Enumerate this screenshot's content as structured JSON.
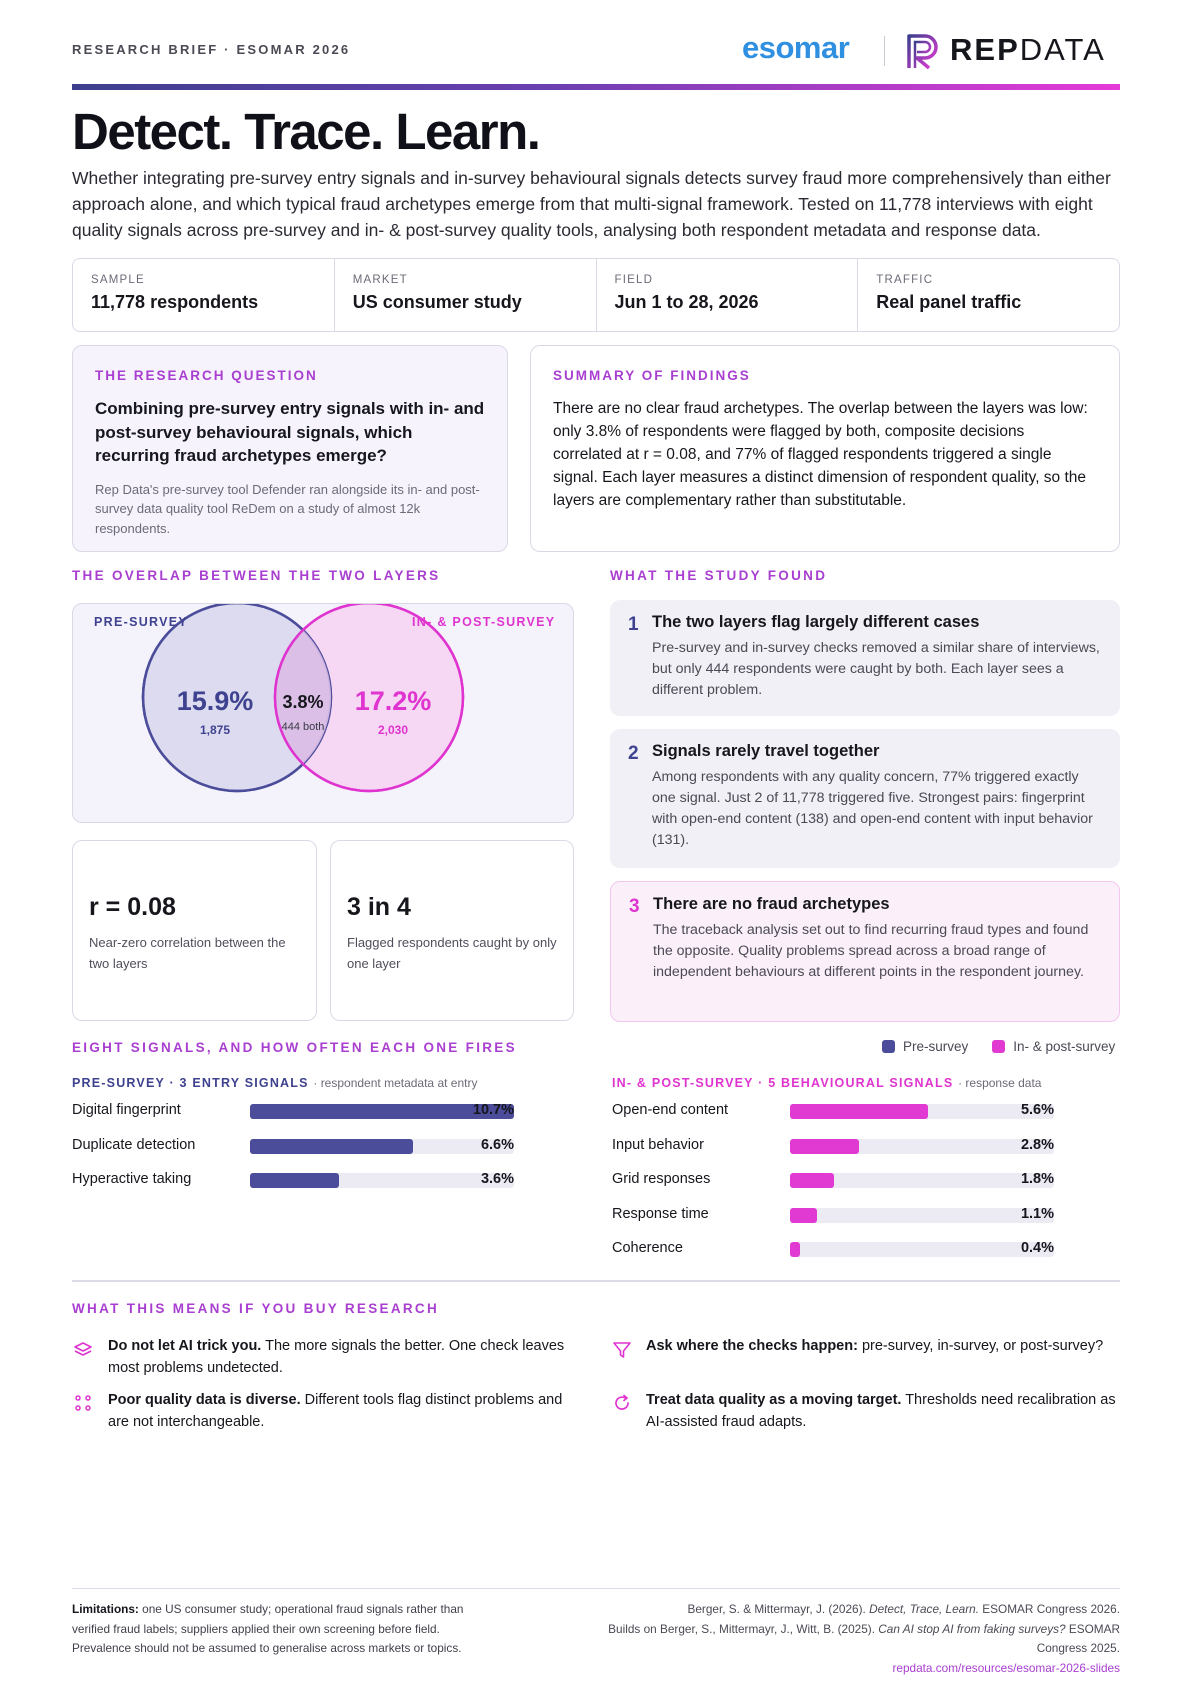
{
  "header": {
    "brief_label": "RESEARCH BRIEF · ESOMAR 2026",
    "esomar_logo": "esomar",
    "repdata_logo_bold": "REP",
    "repdata_logo_light": "DATA"
  },
  "title": "Detect. Trace. Learn.",
  "intro": "Whether integrating pre-survey entry signals and in-survey behavioural signals detects survey fraud more comprehensively than either approach alone, and which typical fraud archetypes emerge from that multi-signal framework. Tested on 11,778 interviews with eight quality signals across pre-survey and in- & post-survey quality tools, analysing both respondent metadata and response data.",
  "meta": [
    {
      "label": "SAMPLE",
      "value": "11,778 respondents"
    },
    {
      "label": "MARKET",
      "value": "US consumer study"
    },
    {
      "label": "FIELD",
      "value": "Jun 1 to 28, 2026"
    },
    {
      "label": "TRAFFIC",
      "value": "Real panel traffic"
    }
  ],
  "question": {
    "eyebrow": "THE RESEARCH QUESTION",
    "text": "Combining pre-survey entry signals with in- and post-survey behavioural signals, which recurring fraud archetypes emerge?",
    "note": "Rep Data's pre-survey tool Defender ran alongside its in- and post-survey data quality tool ReDem on a study of almost 12k respondents."
  },
  "summary": {
    "eyebrow": "SUMMARY OF FINDINGS",
    "text": "There are no clear fraud archetypes. The overlap between the layers was low: only 3.8% of respondents were flagged by both, composite decisions correlated at r = 0.08, and 77% of flagged respondents triggered a single signal. Each layer measures a distinct dimension of respondent quality, so the layers are complementary rather than substitutable."
  },
  "overlap": {
    "heading": "THE OVERLAP BETWEEN THE TWO LAYERS",
    "pre_label": "PRE-SURVEY",
    "post_label": "IN- & POST-SURVEY",
    "pre_pct": "15.9%",
    "pre_count": "1,875",
    "both_pct": "3.8%",
    "both_count": "444 both",
    "post_pct": "17.2%",
    "post_count": "2,030",
    "pre_color": "#3f428f",
    "post_color": "#df34cf"
  },
  "stats": [
    {
      "value": "r = 0.08",
      "caption": "Near-zero correlation between the two layers"
    },
    {
      "value": "3 in 4",
      "caption": "Flagged respondents caught by only one layer"
    }
  ],
  "findings": {
    "heading": "WHAT THE STUDY FOUND",
    "items": [
      {
        "num": "1",
        "title": "The two layers flag largely different cases",
        "body": "Pre-survey and in-survey checks removed a similar share of interviews, but only 444 respondents were caught by both. Each layer sees a different problem."
      },
      {
        "num": "2",
        "title": "Signals rarely travel together",
        "body": "Among respondents with any quality concern, 77% triggered exactly one signal. Just 2 of 11,778 triggered five. Strongest pairs: fingerprint with open-end content (138) and open-end content with input behavior (131)."
      },
      {
        "num": "3",
        "title": "There are no fraud archetypes",
        "body": "The traceback analysis set out to find recurring fraud types and found the opposite. Quality problems spread across a broad range of independent behaviours at different points in the respondent journey."
      }
    ]
  },
  "signals": {
    "heading": "EIGHT SIGNALS, AND HOW OFTEN EACH ONE FIRES",
    "legend_pre": "Pre-survey",
    "legend_post": "In- & post-survey",
    "pre_title": "PRE-SURVEY · 3 ENTRY SIGNALS",
    "pre_note": "· respondent metadata at entry",
    "post_title": "IN- & POST-SURVEY · 5 BEHAVIOURAL SIGNALS",
    "post_note": "· response data"
  },
  "chart_data": {
    "type": "bar",
    "orientation": "horizontal",
    "series": [
      {
        "name": "Pre-survey",
        "color": "#4b4c9a",
        "categories": [
          "Digital fingerprint",
          "Duplicate detection",
          "Hyperactive taking"
        ],
        "values": [
          10.7,
          6.6,
          3.6
        ],
        "labels": [
          "10.7%",
          "6.6%",
          "3.6%"
        ]
      },
      {
        "name": "In- & post-survey",
        "color": "#e03ad2",
        "categories": [
          "Open-end content",
          "Input behavior",
          "Grid responses",
          "Response time",
          "Coherence"
        ],
        "values": [
          5.6,
          2.8,
          1.8,
          1.1,
          0.4
        ],
        "labels": [
          "5.6%",
          "2.8%",
          "1.8%",
          "1.1%",
          "0.4%"
        ]
      }
    ],
    "xlim": [
      0,
      10.7
    ],
    "grid": false,
    "legend_position": "top-right"
  },
  "implications": {
    "heading": "WHAT THIS MEANS IF YOU BUY RESEARCH",
    "items": [
      {
        "icon": "layers-icon",
        "bold": "Do not let AI trick you.",
        "text": " The more signals the better. One check leaves most problems undetected."
      },
      {
        "icon": "funnel-icon",
        "bold": "Ask where the checks happen:",
        "text": " pre-survey, in-survey, or post-survey?"
      },
      {
        "icon": "dots-icon",
        "bold": "Poor quality data is diverse.",
        "text": " Different tools flag distinct problems and are not interchangeable."
      },
      {
        "icon": "refresh-icon",
        "bold": "Treat data quality as a moving target.",
        "text": " Thresholds need recalibration as AI-assisted fraud adapts."
      }
    ]
  },
  "footer": {
    "limitations_label": "Limitations:",
    "limitations_text": " one US consumer study; operational fraud signals rather than verified fraud labels; suppliers applied their own screening before field. Prevalence should not be assumed to generalise across markets or topics.",
    "cite1_a": "Berger, S. & Mittermayr, J. (2026). ",
    "cite1_title": "Detect, Trace, Learn.",
    "cite1_b": " ESOMAR Congress 2026.",
    "cite2_a": "Builds on Berger, S., Mittermayr, J., Witt, B. (2025). ",
    "cite2_title": "Can AI stop AI from faking surveys?",
    "cite2_b": " ESOMAR Congress 2025.",
    "link": "repdata.com/resources/esomar-2026-slides"
  }
}
